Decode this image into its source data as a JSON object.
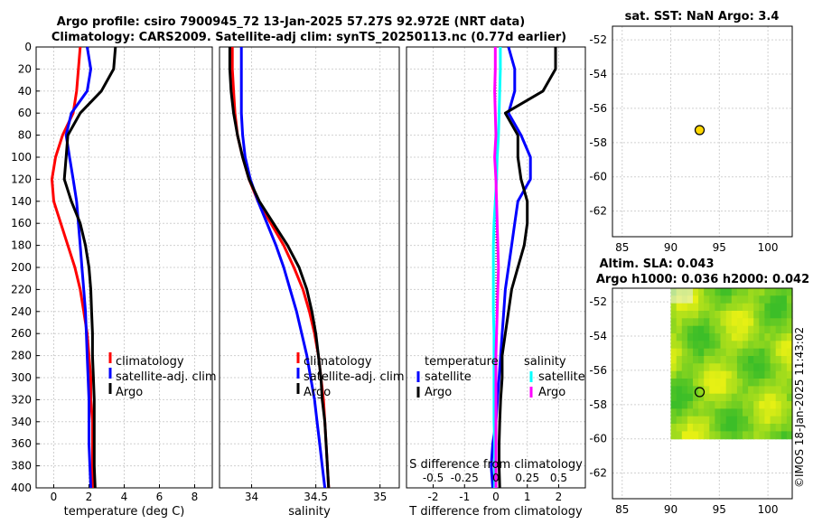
{
  "title": {
    "line1": "Argo profile: csiro 7900945_72 13-Jan-2025 57.27S 92.972E (NRT data)",
    "line2": "Climatology: CARS2009. Satellite-adj clim: synTS_20250113.nc (0.77d earlier)"
  },
  "watermark": "©IMOS 18-Jan-2025 11:43:02",
  "colors": {
    "climatology": "#ff0000",
    "satellite": "#0000ff",
    "argo": "#000000",
    "sal_satellite": "#00ffff",
    "sal_argo": "#ff00ff",
    "sst_marker": "#ffd700"
  },
  "chart_data": [
    {
      "id": "temperature",
      "type": "line",
      "xlabel": "temperature (deg C)",
      "ylabel": "",
      "xlim": [
        -1,
        9
      ],
      "ylim": [
        400,
        0
      ],
      "xticks": [
        0,
        2,
        4,
        6,
        8
      ],
      "yticks": [
        0,
        20,
        40,
        60,
        80,
        100,
        120,
        140,
        160,
        180,
        200,
        220,
        240,
        260,
        280,
        300,
        320,
        340,
        360,
        380,
        400
      ],
      "legend": [
        "climatology",
        "satellite-adj. clim",
        "Argo"
      ],
      "series": [
        {
          "name": "climatology",
          "color": "#ff0000",
          "x": [
            1.5,
            1.4,
            1.3,
            1.1,
            0.5,
            0.1,
            -0.1,
            0.0,
            0.4,
            0.8,
            1.2,
            1.5,
            1.7,
            1.9,
            2.0,
            2.1,
            2.1,
            2.2,
            2.2,
            2.2,
            2.2
          ],
          "y": [
            0,
            20,
            40,
            60,
            80,
            100,
            120,
            140,
            160,
            180,
            200,
            220,
            240,
            260,
            280,
            300,
            320,
            340,
            360,
            380,
            400
          ]
        },
        {
          "name": "satellite-adj. clim",
          "color": "#0000ff",
          "x": [
            1.9,
            2.1,
            1.9,
            1.0,
            0.7,
            0.9,
            1.1,
            1.3,
            1.4,
            1.5,
            1.6,
            1.7,
            1.8,
            1.85,
            1.9,
            1.95,
            2.0,
            2.0,
            2.0,
            2.05,
            2.1
          ],
          "y": [
            0,
            20,
            40,
            60,
            80,
            100,
            120,
            140,
            160,
            180,
            200,
            220,
            240,
            260,
            280,
            300,
            320,
            340,
            360,
            380,
            400
          ]
        },
        {
          "name": "Argo",
          "color": "#000000",
          "x": [
            3.5,
            3.4,
            2.7,
            1.5,
            0.8,
            0.7,
            0.6,
            1.0,
            1.5,
            1.8,
            2.0,
            2.1,
            2.15,
            2.2,
            2.2,
            2.25,
            2.3,
            2.3,
            2.3,
            2.3,
            2.35
          ],
          "y": [
            0,
            20,
            40,
            60,
            80,
            100,
            120,
            140,
            160,
            180,
            200,
            220,
            240,
            260,
            280,
            300,
            320,
            340,
            360,
            380,
            400
          ]
        }
      ]
    },
    {
      "id": "salinity",
      "type": "line",
      "xlabel": "salinity",
      "ylabel": "",
      "xlim": [
        33.75,
        35.15
      ],
      "ylim": [
        400,
        0
      ],
      "xticks": [
        34,
        34.5,
        35
      ],
      "legend": [
        "climatology",
        "satellite-adj. clim",
        "Argo"
      ],
      "series": [
        {
          "name": "climatology",
          "color": "#ff0000",
          "x": [
            33.85,
            33.85,
            33.86,
            33.87,
            33.89,
            33.93,
            33.98,
            34.05,
            34.15,
            34.25,
            34.33,
            34.4,
            34.45,
            34.49,
            34.52,
            34.54,
            34.56,
            34.57,
            34.58,
            34.59,
            34.6
          ],
          "y": [
            0,
            20,
            40,
            60,
            80,
            100,
            120,
            140,
            160,
            180,
            200,
            220,
            240,
            260,
            280,
            300,
            320,
            340,
            360,
            380,
            400
          ]
        },
        {
          "name": "satellite-adj. clim",
          "color": "#0000ff",
          "x": [
            33.92,
            33.92,
            33.92,
            33.92,
            33.93,
            33.95,
            33.99,
            34.05,
            34.12,
            34.19,
            34.25,
            34.3,
            34.35,
            34.39,
            34.43,
            34.46,
            34.49,
            34.51,
            34.53,
            34.55,
            34.57
          ],
          "y": [
            0,
            20,
            40,
            60,
            80,
            100,
            120,
            140,
            160,
            180,
            200,
            220,
            240,
            260,
            280,
            300,
            320,
            340,
            360,
            380,
            400
          ]
        },
        {
          "name": "Argo",
          "color": "#000000",
          "x": [
            33.83,
            33.83,
            33.84,
            33.86,
            33.89,
            33.93,
            33.98,
            34.06,
            34.17,
            34.28,
            34.37,
            34.43,
            34.47,
            34.5,
            34.52,
            34.54,
            34.55,
            34.57,
            34.58,
            34.59,
            34.6
          ],
          "y": [
            0,
            20,
            40,
            60,
            80,
            100,
            120,
            140,
            160,
            180,
            200,
            220,
            240,
            260,
            280,
            300,
            320,
            340,
            360,
            380,
            400
          ]
        }
      ]
    },
    {
      "id": "differences",
      "type": "line",
      "xlabel": "T difference from climatology",
      "xlabel_top": "S difference from climatology",
      "xlim": [
        -2.85,
        2.85
      ],
      "ylim": [
        400,
        0
      ],
      "xticks": [
        -2,
        -1,
        0,
        1,
        2
      ],
      "xtick_labels": [
        "-2",
        "-1",
        "0",
        "1",
        "2"
      ],
      "xticks_top": [
        -0.5,
        -0.25,
        0,
        0.25,
        0.5
      ],
      "xtick_top_labels": [
        "-0.5",
        "-0.25",
        "0",
        "0.25",
        "0.5"
      ],
      "s_scale": 2,
      "legend_left_title": "temperature",
      "legend_left": [
        "satellite",
        "Argo"
      ],
      "legend_right_title": "salinity",
      "legend_right": [
        "satellite",
        "Argo"
      ],
      "series": [
        {
          "name": "T satellite",
          "color": "#0000ff",
          "x": [
            0.4,
            0.6,
            0.6,
            0.4,
            0.8,
            1.1,
            1.1,
            0.7,
            0.6,
            0.5,
            0.4,
            0.3,
            0.25,
            0.2,
            0.15,
            0.1,
            0.05,
            0.0,
            -0.1,
            -0.15,
            -0.1
          ],
          "y": [
            0,
            20,
            40,
            60,
            80,
            100,
            120,
            140,
            160,
            180,
            200,
            220,
            240,
            260,
            280,
            300,
            320,
            340,
            360,
            380,
            400
          ]
        },
        {
          "name": "T Argo",
          "color": "#000000",
          "x": [
            1.9,
            1.9,
            1.5,
            0.3,
            0.7,
            0.7,
            0.8,
            1.0,
            1.0,
            0.9,
            0.7,
            0.5,
            0.4,
            0.3,
            0.2,
            0.2,
            0.15,
            0.12,
            0.1,
            0.1,
            0.12
          ],
          "y": [
            0,
            20,
            40,
            60,
            80,
            100,
            120,
            140,
            160,
            180,
            200,
            220,
            240,
            260,
            280,
            300,
            320,
            340,
            360,
            380,
            400
          ]
        },
        {
          "name": "S satellite",
          "color": "#00ffff",
          "x": [
            0.07,
            0.07,
            0.06,
            0.05,
            0.04,
            0.02,
            0.01,
            -0.01,
            -0.03,
            -0.04,
            -0.04,
            -0.04,
            -0.04,
            -0.03,
            -0.03,
            -0.03,
            -0.03,
            -0.03,
            -0.02,
            -0.02,
            -0.02
          ],
          "y": [
            0,
            20,
            40,
            60,
            80,
            100,
            120,
            140,
            160,
            180,
            200,
            220,
            240,
            260,
            280,
            300,
            320,
            340,
            360,
            380,
            400
          ]
        },
        {
          "name": "S Argo",
          "color": "#ff00ff",
          "x": [
            -0.01,
            -0.01,
            -0.02,
            -0.01,
            0.0,
            -0.02,
            0.0,
            0.01,
            0.02,
            0.03,
            0.04,
            0.03,
            0.02,
            0.01,
            0.0,
            0.0,
            0.0,
            0.0,
            0.0,
            0.0,
            0.0
          ],
          "y": [
            0,
            20,
            40,
            60,
            80,
            100,
            120,
            140,
            160,
            180,
            200,
            220,
            240,
            260,
            280,
            300,
            320,
            340,
            360,
            380,
            400
          ]
        }
      ]
    },
    {
      "id": "sst_map",
      "type": "scatter",
      "title": "sat. SST: NaN Argo: 3.4",
      "xlim": [
        84,
        102.5
      ],
      "ylim": [
        -63.5,
        -51.2
      ],
      "xticks": [
        85,
        90,
        95,
        100
      ],
      "yticks": [
        -52,
        -54,
        -56,
        -58,
        -60,
        -62
      ],
      "points": [
        {
          "x": 92.972,
          "y": -57.27,
          "color": "#ffd700"
        }
      ]
    },
    {
      "id": "sla_map",
      "type": "heatmap",
      "title_line1": "Altim. SLA: 0.043",
      "title_line2": "Argo h1000: 0.036 h2000: 0.042",
      "xlim": [
        84,
        102.5
      ],
      "ylim": [
        -63.5,
        -51.2
      ],
      "xticks": [
        85,
        90,
        95,
        100
      ],
      "yticks": [
        -52,
        -54,
        -56,
        -58,
        -60,
        -62
      ],
      "heatmap_extent": {
        "lon": [
          90,
          102.5
        ],
        "lat": [
          -60,
          -51.2
        ]
      },
      "points": [
        {
          "x": 92.972,
          "y": -57.27,
          "color": "#33cc33"
        }
      ]
    }
  ]
}
